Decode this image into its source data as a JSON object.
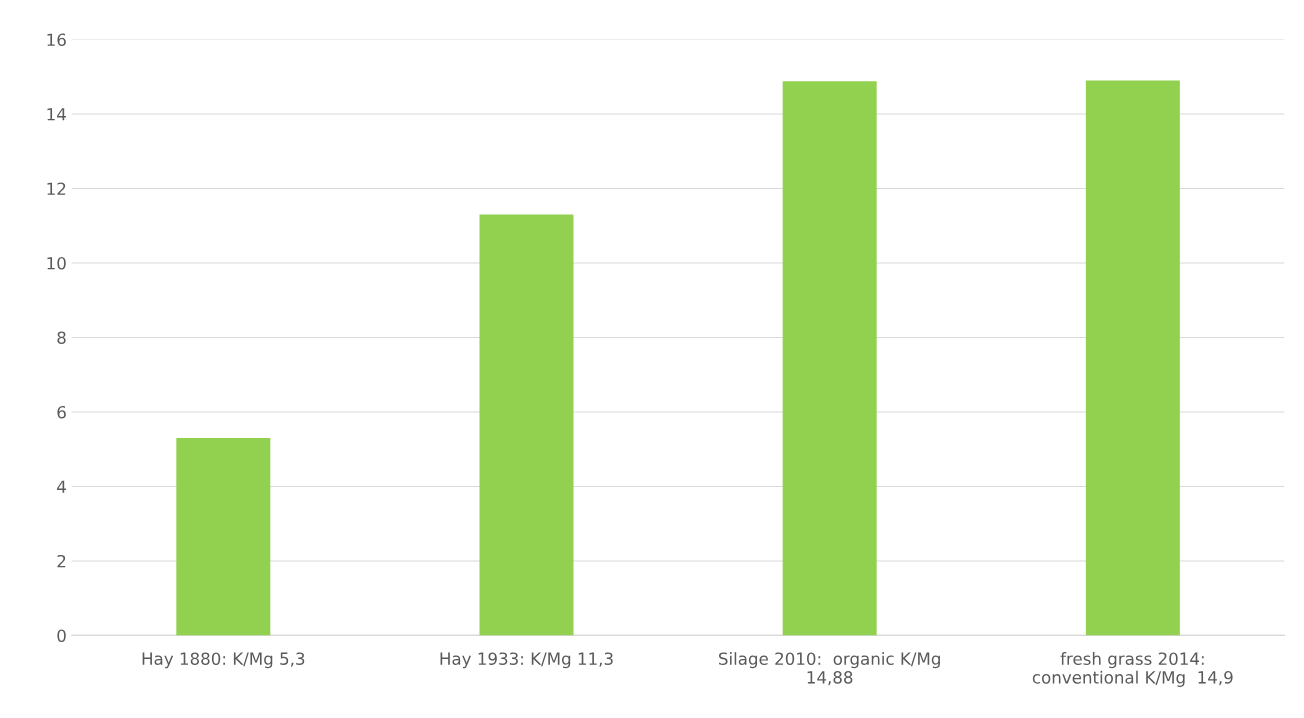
{
  "chart_data": {
    "type": "bar",
    "categories": [
      "Hay 1880: K/Mg 5,3",
      "Hay 1933: K/Mg 11,3",
      "Silage 2010:  organic K/Mg 14,88",
      "fresh grass 2014: conventional K/Mg  14,9"
    ],
    "values": [
      5.3,
      11.3,
      14.88,
      14.9
    ],
    "color": "#92d050",
    "ylim": [
      0,
      16
    ],
    "yticks": [
      0,
      2,
      4,
      6,
      8,
      10,
      12,
      14,
      16
    ],
    "grid": "y",
    "legend": false
  }
}
